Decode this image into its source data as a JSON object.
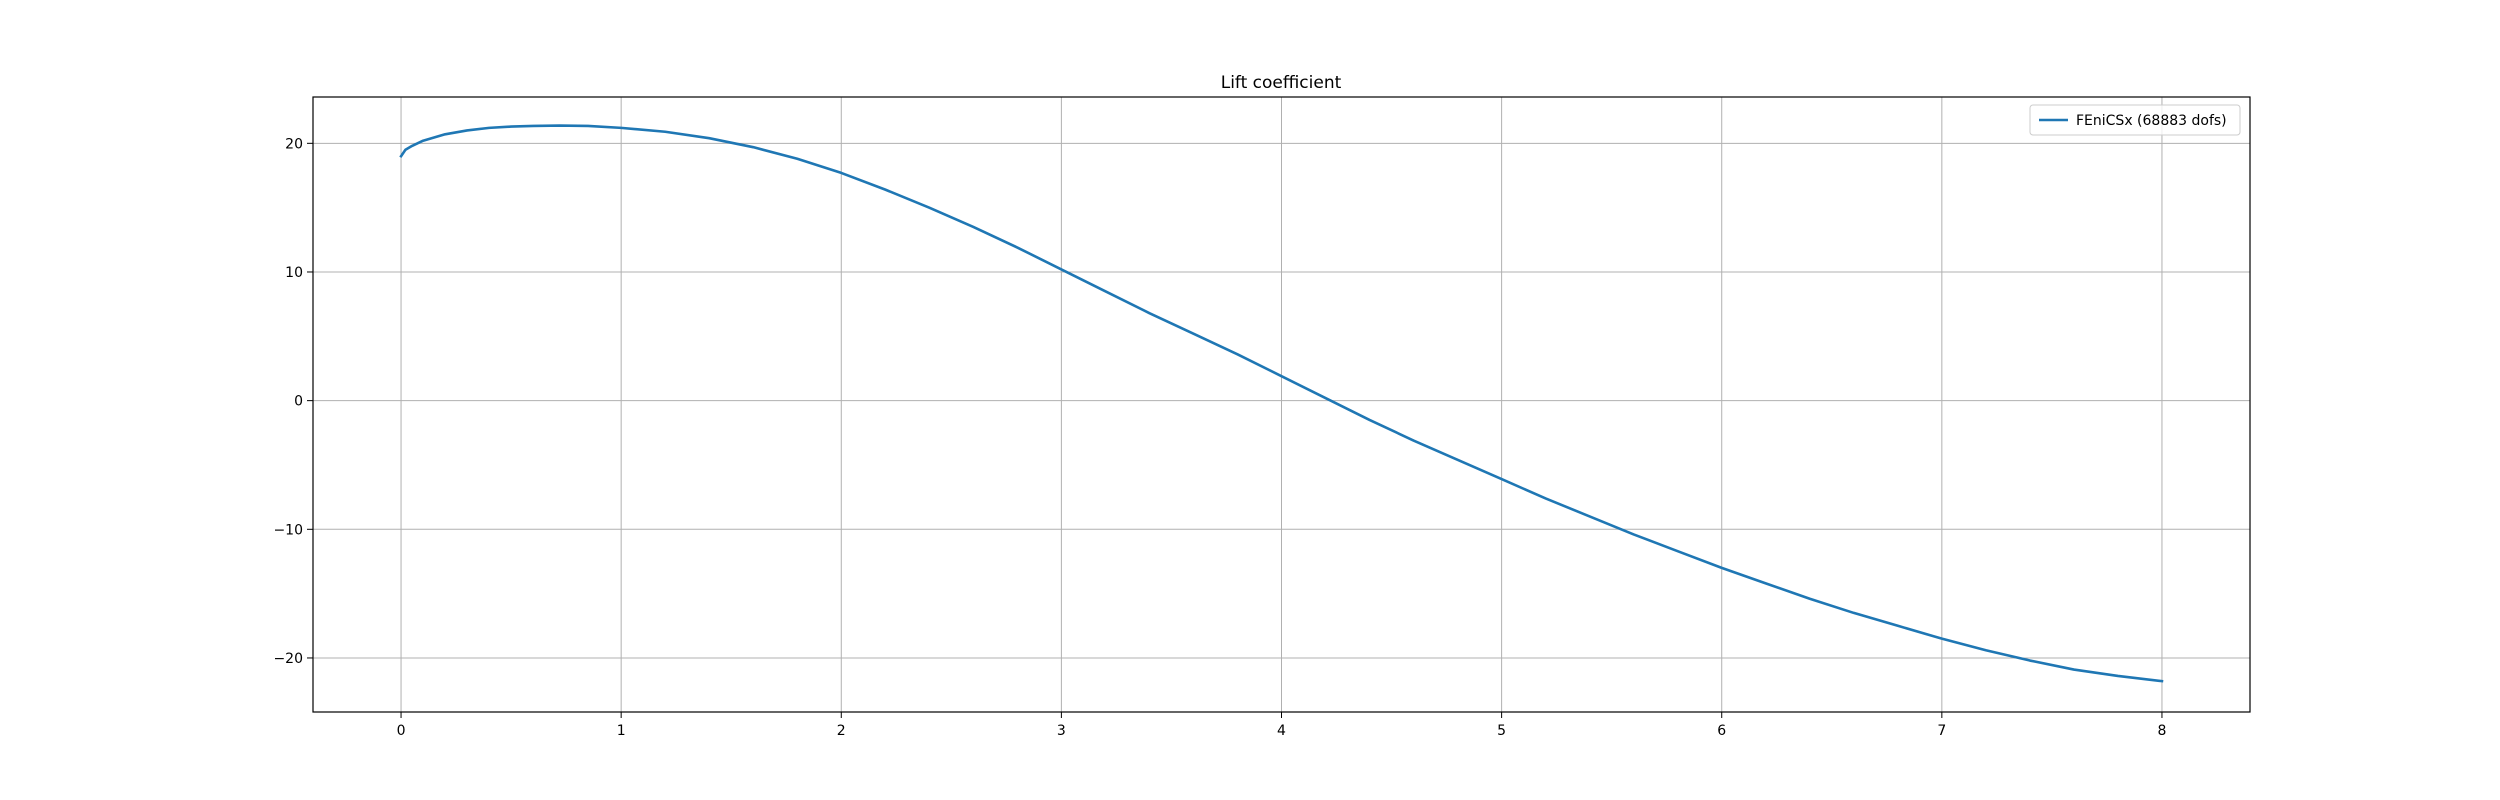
{
  "chart_data": {
    "type": "line",
    "title": "Lift coefficient",
    "xlabel": "",
    "ylabel": "",
    "xlim": [
      -0.4,
      8.4
    ],
    "ylim": [
      -24.2,
      23.6
    ],
    "grid": true,
    "legend_placement": "top-right",
    "x_ticks": [
      0,
      1,
      2,
      3,
      4,
      5,
      6,
      7,
      8
    ],
    "y_ticks": [
      -20,
      -10,
      0,
      10,
      20
    ],
    "x_tick_labels": [
      "0",
      "1",
      "2",
      "3",
      "4",
      "5",
      "6",
      "7",
      "8"
    ],
    "y_tick_labels": [
      "−20",
      "−10",
      "0",
      "10",
      "20"
    ],
    "series": [
      {
        "name": "FEniCSx  (68883 dofs)",
        "color": "#1f77b4",
        "x": [
          0,
          0.02,
          0.05,
          0.1,
          0.2,
          0.3,
          0.4,
          0.5,
          0.6,
          0.72,
          0.85,
          1.0,
          1.2,
          1.4,
          1.6,
          1.8,
          2.0,
          2.2,
          2.4,
          2.6,
          2.8,
          3.0,
          3.2,
          3.4,
          3.6,
          3.8,
          4.0,
          4.2,
          4.4,
          4.6,
          4.8,
          5.0,
          5.2,
          5.4,
          5.6,
          5.8,
          6.0,
          6.2,
          6.4,
          6.6,
          6.8,
          7.0,
          7.2,
          7.4,
          7.6,
          7.8,
          8.0
        ],
        "y": [
          19.0,
          19.5,
          19.8,
          20.2,
          20.7,
          21.0,
          21.2,
          21.3,
          21.35,
          21.38,
          21.35,
          21.2,
          20.9,
          20.4,
          19.7,
          18.8,
          17.7,
          16.4,
          15.0,
          13.5,
          11.9,
          10.2,
          8.5,
          6.8,
          5.2,
          3.6,
          1.9,
          0.2,
          -1.5,
          -3.1,
          -4.6,
          -6.1,
          -7.6,
          -9.0,
          -10.4,
          -11.7,
          -13.0,
          -14.2,
          -15.4,
          -16.5,
          -17.5,
          -18.5,
          -19.4,
          -20.2,
          -20.9,
          -21.4,
          -21.8
        ]
      }
    ]
  }
}
